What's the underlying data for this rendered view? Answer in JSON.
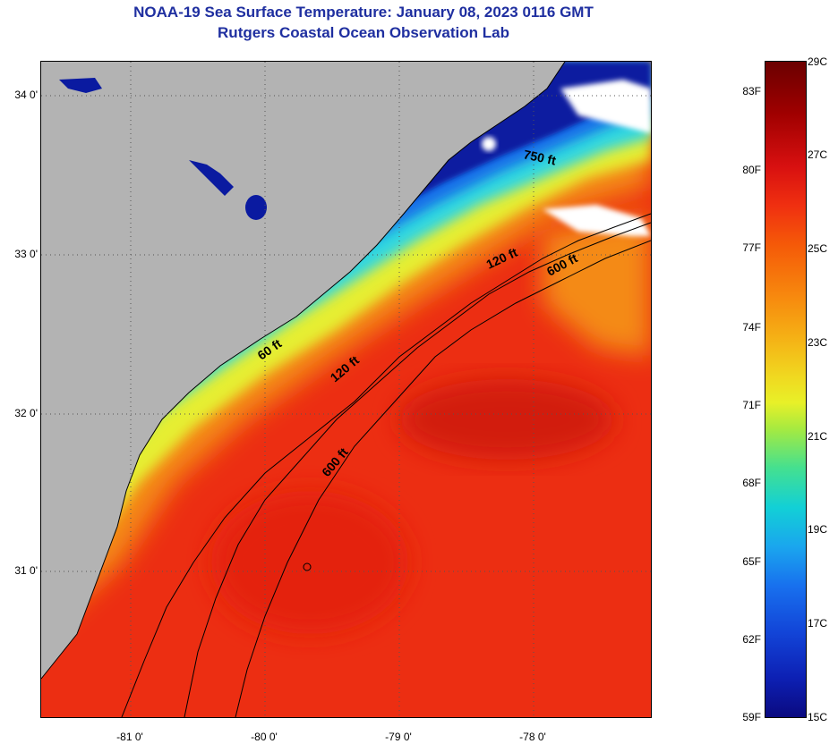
{
  "title": {
    "line1": "NOAA-19 Sea Surface Temperature:  January 08, 2023 0116 GMT",
    "line2": "Rutgers Coastal Ocean Observation Lab"
  },
  "map": {
    "lat_labels": [
      "34 0'",
      "33 0'",
      "32 0'",
      "31 0'"
    ],
    "lon_labels": [
      "-81 0'",
      "-80 0'",
      "-79 0'",
      "-78 0'"
    ],
    "contour_labels": [
      "750 ft",
      "120 ft",
      "600 ft",
      "60 ft",
      "120 ft",
      "600 ft"
    ],
    "land_color": "#b3b3b3",
    "colors": {
      "cold_coastal": "#0a1aa0",
      "mid_blue": "#1870e8",
      "cyan": "#30d8e0",
      "yellow": "#e6ee30",
      "orange": "#f48a18",
      "warm_red": "#ec2e12",
      "cloud": "#ffffff"
    }
  },
  "colorbar": {
    "fahrenheit_labels": [
      "83F",
      "80F",
      "77F",
      "74F",
      "71F",
      "68F",
      "65F",
      "62F",
      "59F"
    ],
    "celsius_labels": [
      "29C",
      "27C",
      "25C",
      "23C",
      "21C",
      "19C",
      "17C",
      "15C"
    ]
  }
}
